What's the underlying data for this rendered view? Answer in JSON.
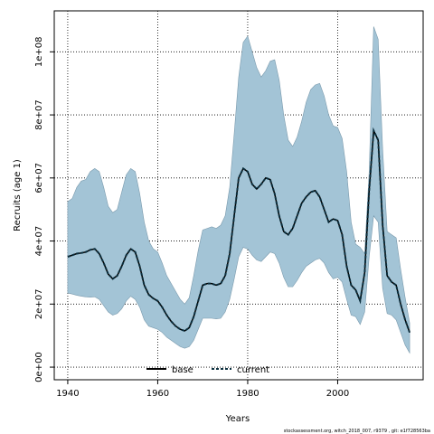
{
  "chart_data": {
    "type": "line",
    "title": "",
    "xlabel": "Years",
    "ylabel": "Recruits (age 1)",
    "xlim": [
      1937,
      2019
    ],
    "ylim": [
      -4000000,
      113000000
    ],
    "x_ticks": [
      1940,
      1960,
      1980,
      2000
    ],
    "x_tick_labels": [
      "1940",
      "1960",
      "1980",
      "2000"
    ],
    "y_ticks": [
      0,
      20000000,
      40000000,
      60000000,
      80000000,
      100000000
    ],
    "y_tick_labels": [
      "0e+00",
      "2e+07",
      "4e+07",
      "6e+07",
      "8e+07",
      "1e+08"
    ],
    "grid": true,
    "legend": {
      "position": "bottom-center",
      "entries": [
        "base",
        "current"
      ]
    },
    "colors": {
      "band": "#a3c4d6",
      "band_edge": "#7a9aad",
      "base": "#000000",
      "current": "#0b2f3e"
    },
    "years": [
      1940,
      1941,
      1942,
      1943,
      1944,
      1945,
      1946,
      1947,
      1948,
      1949,
      1950,
      1951,
      1952,
      1953,
      1954,
      1955,
      1956,
      1957,
      1958,
      1959,
      1960,
      1961,
      1962,
      1963,
      1964,
      1965,
      1966,
      1967,
      1968,
      1969,
      1970,
      1971,
      1972,
      1973,
      1974,
      1975,
      1976,
      1977,
      1978,
      1979,
      1980,
      1981,
      1982,
      1983,
      1984,
      1985,
      1986,
      1987,
      1988,
      1989,
      1990,
      1991,
      1992,
      1993,
      1994,
      1995,
      1996,
      1997,
      1998,
      1999,
      2000,
      2001,
      2002,
      2003,
      2004,
      2005,
      2006,
      2007,
      2008,
      2009,
      2010,
      2011,
      2012,
      2013,
      2014,
      2015,
      2016
    ],
    "series": [
      {
        "name": "base",
        "values": [
          35000000,
          35500000,
          36000000,
          36200000,
          36500000,
          37200000,
          37500000,
          36000000,
          33000000,
          29500000,
          28000000,
          29000000,
          32000000,
          35500000,
          37500000,
          36500000,
          32000000,
          26000000,
          23000000,
          21800000,
          21000000,
          19000000,
          16500000,
          14500000,
          13000000,
          12000000,
          11500000,
          12500000,
          16000000,
          21000000,
          26000000,
          26500000,
          26500000,
          26000000,
          26500000,
          29000000,
          36000000,
          48000000,
          60000000,
          63000000,
          62000000,
          58000000,
          56500000,
          58000000,
          60000000,
          59500000,
          55000000,
          48000000,
          43000000,
          42000000,
          44000000,
          48000000,
          52000000,
          54000000,
          55500000,
          56000000,
          54000000,
          50000000,
          46000000,
          47000000,
          46500000,
          42000000,
          32000000,
          26000000,
          24500000,
          21000000,
          30000000,
          56000000,
          75000000,
          72000000,
          45000000,
          29000000,
          27000000,
          26000000,
          20000000,
          15000000,
          11000000
        ]
      },
      {
        "name": "current",
        "values": [
          35000000,
          35500000,
          36000000,
          36200000,
          36500000,
          37200000,
          37500000,
          36000000,
          33000000,
          29500000,
          28000000,
          29000000,
          32000000,
          35500000,
          37500000,
          36500000,
          32000000,
          26000000,
          23000000,
          21800000,
          21000000,
          19000000,
          16500000,
          14500000,
          13000000,
          12000000,
          11500000,
          12500000,
          16000000,
          21000000,
          26000000,
          26500000,
          26500000,
          26000000,
          26500000,
          29000000,
          36000000,
          48000000,
          60000000,
          63000000,
          62000000,
          58000000,
          56500000,
          58000000,
          60000000,
          59500000,
          55000000,
          48000000,
          43000000,
          42000000,
          44000000,
          48000000,
          52000000,
          54000000,
          55500000,
          56000000,
          54000000,
          50000000,
          46000000,
          47000000,
          46500000,
          42000000,
          32000000,
          26000000,
          24500000,
          21000000,
          30000000,
          56000000,
          75000000,
          72000000,
          45000000,
          29000000,
          27000000,
          26000000,
          20000000,
          15000000,
          11000000
        ]
      }
    ],
    "upper": [
      52500000,
      53500000,
      57000000,
      59000000,
      59500000,
      62000000,
      63000000,
      62000000,
      57000000,
      51000000,
      49000000,
      50000000,
      55500000,
      61000000,
      63000000,
      62000000,
      55000000,
      46000000,
      40000000,
      37500000,
      36500000,
      33000000,
      29000000,
      26500000,
      24000000,
      21500000,
      20000000,
      22000000,
      29000000,
      37000000,
      43500000,
      44000000,
      44500000,
      44000000,
      45000000,
      48000000,
      57000000,
      74000000,
      92000000,
      103000000,
      105000000,
      100000000,
      95000000,
      92000000,
      94000000,
      97000000,
      97500000,
      91000000,
      80000000,
      72000000,
      70000000,
      73000000,
      78000000,
      84000000,
      88000000,
      89500000,
      90000000,
      86000000,
      80000000,
      76500000,
      76000000,
      72500000,
      62000000,
      46000000,
      39000000,
      38000000,
      36000000,
      62000000,
      108000000,
      104000000,
      69000000,
      43000000,
      42000000,
      41000000,
      31000000,
      22000000,
      14000000
    ],
    "lower": [
      23500000,
      23200000,
      22800000,
      22500000,
      22300000,
      22200000,
      22300000,
      21500000,
      19500000,
      17500000,
      16500000,
      17000000,
      18500000,
      21000000,
      22500000,
      21500000,
      19000000,
      15000000,
      13000000,
      12500000,
      12000000,
      11000000,
      9500000,
      8500000,
      7500000,
      6500000,
      6000000,
      6500000,
      8500000,
      12000000,
      15500000,
      15500000,
      15500000,
      15300000,
      15500000,
      17500000,
      21500000,
      28000000,
      35000000,
      38000000,
      37500000,
      35500000,
      34000000,
      33500000,
      35000000,
      36500000,
      36000000,
      33000000,
      28500000,
      25500000,
      25500000,
      27500000,
      30000000,
      32000000,
      33000000,
      34000000,
      34500000,
      33000000,
      30000000,
      28000000,
      28500000,
      27000000,
      21500000,
      16500000,
      16000000,
      13500000,
      17500000,
      35000000,
      48000000,
      46000000,
      25000000,
      17000000,
      16500000,
      15000000,
      11000000,
      7000000,
      4500000
    ]
  },
  "footer": "stockassessment.org, witch_2018_007, r9379 , git: e1f728563ba"
}
